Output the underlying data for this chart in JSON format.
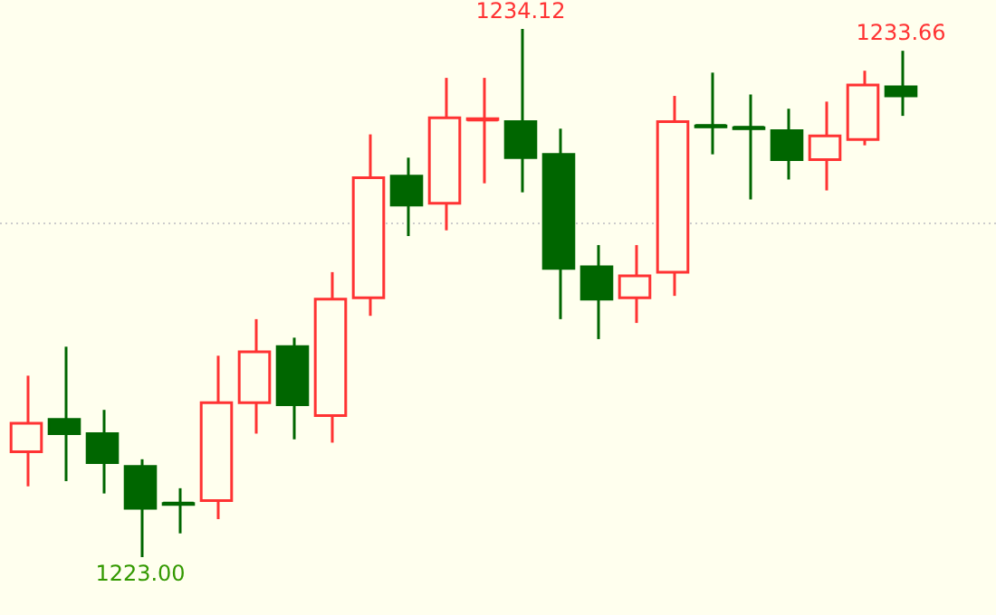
{
  "chart_data": {
    "type": "candlestick",
    "categories": [
      null,
      null,
      null,
      null,
      null,
      null,
      null,
      null,
      null,
      null,
      null,
      null,
      null,
      null,
      null,
      null,
      null,
      null,
      null,
      null,
      null,
      null,
      null,
      null
    ],
    "ohlc": [
      [
        1225.22,
        1226.82,
        1224.49,
        1225.82
      ],
      [
        1225.9,
        1227.43,
        1224.6,
        1225.6
      ],
      [
        1225.6,
        1226.1,
        1224.34,
        1224.99
      ],
      [
        1224.91,
        1225.06,
        1223.0,
        1224.03
      ],
      [
        1224.13,
        1224.45,
        1223.5,
        1224.11
      ],
      [
        1224.19,
        1227.24,
        1223.8,
        1226.25
      ],
      [
        1226.25,
        1228.01,
        1225.6,
        1227.32
      ],
      [
        1227.43,
        1227.62,
        1225.48,
        1226.21
      ],
      [
        1225.98,
        1229.0,
        1225.41,
        1228.43
      ],
      [
        1228.46,
        1231.9,
        1228.08,
        1230.99
      ],
      [
        1231.02,
        1231.41,
        1229.76,
        1230.41
      ],
      [
        1230.45,
        1233.09,
        1229.88,
        1232.25
      ],
      [
        1232.21,
        1233.09,
        1230.87,
        1232.23
      ],
      [
        1232.17,
        1234.12,
        1230.68,
        1231.41
      ],
      [
        1231.48,
        1232.02,
        1228.01,
        1229.08
      ],
      [
        1229.11,
        1229.57,
        1227.59,
        1228.43
      ],
      [
        1228.46,
        1229.57,
        1227.93,
        1228.92
      ],
      [
        1229.0,
        1232.71,
        1228.5,
        1232.17
      ],
      [
        1232.08,
        1233.2,
        1231.48,
        1232.06
      ],
      [
        1232.04,
        1232.74,
        1230.53,
        1232.02
      ],
      [
        1231.98,
        1232.44,
        1230.95,
        1231.37
      ],
      [
        1231.37,
        1232.59,
        1230.72,
        1231.87
      ],
      [
        1231.79,
        1233.24,
        1231.67,
        1232.94
      ],
      [
        1232.9,
        1233.66,
        1232.29,
        1232.71
      ]
    ],
    "colors": [
      "#ff3333",
      "#006600",
      "#006600",
      "#006600",
      "#006600",
      "#ff3333",
      "#ff3333",
      "#006600",
      "#ff3333",
      "#ff3333",
      "#006600",
      "#ff3333",
      "#ff3333",
      "#006600",
      "#006600",
      "#006600",
      "#ff3333",
      "#ff3333",
      "#006600",
      "#006600",
      "#006600",
      "#ff3333",
      "#ff3333",
      "#006600"
    ],
    "annotations": [
      {
        "text": "1234.12",
        "y": 1234.12
      },
      {
        "text": "1233.66",
        "y": 1233.66
      },
      {
        "text": "1223.00",
        "y": 1223.0
      }
    ],
    "ref_lines": [
      {
        "axis": "y",
        "value": 1230.03,
        "color": "#cccccc",
        "line_style": "dotted"
      }
    ]
  }
}
